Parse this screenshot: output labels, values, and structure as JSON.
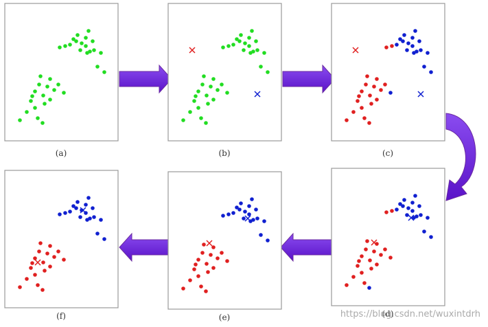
{
  "panels": [
    {
      "label": "(a)"
    },
    {
      "label": "(b)"
    },
    {
      "label": "(c)"
    },
    {
      "label": "(d)"
    },
    {
      "label": "(e)"
    },
    {
      "label": "(f)"
    }
  ],
  "watermark": "https://blog.csdn.net/wuxintdrh"
}
